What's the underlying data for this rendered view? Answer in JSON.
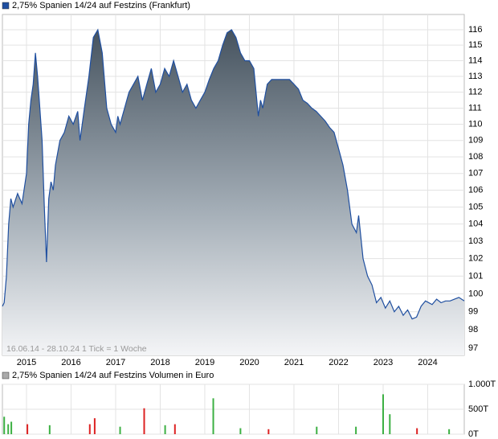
{
  "chart_data": [
    {
      "type": "area",
      "log": true,
      "grid": true,
      "note": "16.06.14 - 28.10.24   1 Tick = 1 Woche",
      "x": [
        2014.46,
        2014.5,
        2014.55,
        2014.6,
        2014.65,
        2014.7,
        2014.8,
        2014.9,
        2015.0,
        2015.05,
        2015.1,
        2015.15,
        2015.2,
        2015.25,
        2015.3,
        2015.35,
        2015.4,
        2015.45,
        2015.5,
        2015.55,
        2015.6,
        2015.65,
        2015.75,
        2015.85,
        2015.95,
        2016.05,
        2016.15,
        2016.2,
        2016.3,
        2016.4,
        2016.5,
        2016.6,
        2016.7,
        2016.8,
        2016.9,
        2017.0,
        2017.05,
        2017.1,
        2017.2,
        2017.3,
        2017.4,
        2017.5,
        2017.6,
        2017.7,
        2017.8,
        2017.9,
        2018.0,
        2018.1,
        2018.2,
        2018.3,
        2018.4,
        2018.5,
        2018.6,
        2018.7,
        2018.8,
        2018.9,
        2019.0,
        2019.1,
        2019.2,
        2019.3,
        2019.4,
        2019.5,
        2019.6,
        2019.7,
        2019.8,
        2019.9,
        2020.0,
        2020.1,
        2020.2,
        2020.25,
        2020.3,
        2020.4,
        2020.5,
        2020.7,
        2020.9,
        2021.0,
        2021.1,
        2021.2,
        2021.3,
        2021.4,
        2021.5,
        2021.6,
        2021.7,
        2021.8,
        2021.9,
        2022.0,
        2022.1,
        2022.2,
        2022.3,
        2022.4,
        2022.45,
        2022.55,
        2022.65,
        2022.75,
        2022.85,
        2022.95,
        2023.05,
        2023.15,
        2023.25,
        2023.35,
        2023.45,
        2023.55,
        2023.65,
        2023.75,
        2023.85,
        2023.95,
        2024.1,
        2024.2,
        2024.3,
        2024.4,
        2024.5,
        2024.6,
        2024.7,
        2024.82
      ],
      "series": [
        {
          "name": "2,75% Spanien 14/24 auf Festzins (Frankfurt)",
          "color": "#1f4fa0",
          "values": [
            99.3,
            99.5,
            101,
            104,
            105.5,
            105,
            105.8,
            105.2,
            107,
            110,
            111.5,
            112.5,
            114.5,
            113,
            111,
            109,
            105,
            101.8,
            105.5,
            106.5,
            106,
            107.5,
            109,
            109.5,
            110.5,
            110,
            110.8,
            109,
            111,
            113,
            115.5,
            116,
            114.5,
            111,
            110,
            109.5,
            110.5,
            110,
            111,
            112,
            112.5,
            113,
            111.5,
            112.5,
            113.5,
            112,
            112.5,
            113.5,
            113,
            114,
            113,
            112,
            112.5,
            111.5,
            111,
            111.5,
            112,
            112.8,
            113.5,
            114,
            115,
            115.8,
            116,
            115.5,
            114.5,
            114,
            114,
            113.5,
            110.5,
            111.5,
            111,
            112.5,
            112.8,
            112.8,
            112.8,
            112.5,
            112.2,
            111.5,
            111.3,
            111,
            110.8,
            110.5,
            110.2,
            109.8,
            109.5,
            108.5,
            107.5,
            106,
            104,
            103.5,
            104.5,
            102,
            101,
            100.5,
            99.5,
            99.8,
            99.2,
            99.6,
            99.0,
            99.3,
            98.8,
            99.1,
            98.6,
            98.7,
            99.3,
            99.6,
            99.4,
            99.7,
            99.5,
            99.6,
            99.6,
            99.7,
            99.8,
            99.6
          ]
        }
      ],
      "xlim": [
        2014.46,
        2024.82
      ],
      "xticks": [
        2015,
        2016,
        2017,
        2018,
        2019,
        2020,
        2021,
        2022,
        2023,
        2024
      ],
      "ylim": [
        96.6,
        117
      ],
      "yticks": [
        97,
        98,
        99,
        100,
        101,
        102,
        103,
        104,
        105,
        106,
        107,
        108,
        109,
        110,
        111,
        112,
        113,
        114,
        115,
        116
      ]
    },
    {
      "type": "bar",
      "grid": true,
      "x": [
        2014.5,
        2014.59,
        2014.66,
        2015.02,
        2015.52,
        2016.42,
        2016.53,
        2017.1,
        2017.64,
        2018.11,
        2018.33,
        2019.19,
        2019.8,
        2020.43,
        2021.51,
        2022.39,
        2023.0,
        2023.15,
        2023.76,
        2024.48
      ],
      "series": [
        {
          "name": "2,75% Spanien 14/24 auf Festzins Volumen in Euro",
          "color": "#aaaaaa",
          "values": [
            350,
            200,
            250,
            200,
            180,
            200,
            320,
            150,
            520,
            180,
            200,
            720,
            120,
            100,
            150,
            150,
            800,
            400,
            120,
            100
          ],
          "bar_colors": [
            "#3cb043",
            "#3cb043",
            "#3cb043",
            "#d22",
            "#3cb043",
            "#d22",
            "#d22",
            "#3cb043",
            "#d22",
            "#3cb043",
            "#d22",
            "#3cb043",
            "#3cb043",
            "#d22",
            "#3cb043",
            "#3cb043",
            "#3cb043",
            "#3cb043",
            "#d22",
            "#3cb043"
          ]
        }
      ],
      "xlim": [
        2014.46,
        2024.82
      ],
      "xticks": [
        2015,
        2016,
        2017,
        2018,
        2019,
        2020,
        2021,
        2022,
        2023,
        2024
      ],
      "ylim": [
        0,
        1000
      ],
      "yticks": [
        {
          "value": 0,
          "label": "0T"
        },
        {
          "value": 500,
          "label": "500T"
        },
        {
          "value": 1000,
          "label": "1.000T"
        }
      ]
    }
  ]
}
